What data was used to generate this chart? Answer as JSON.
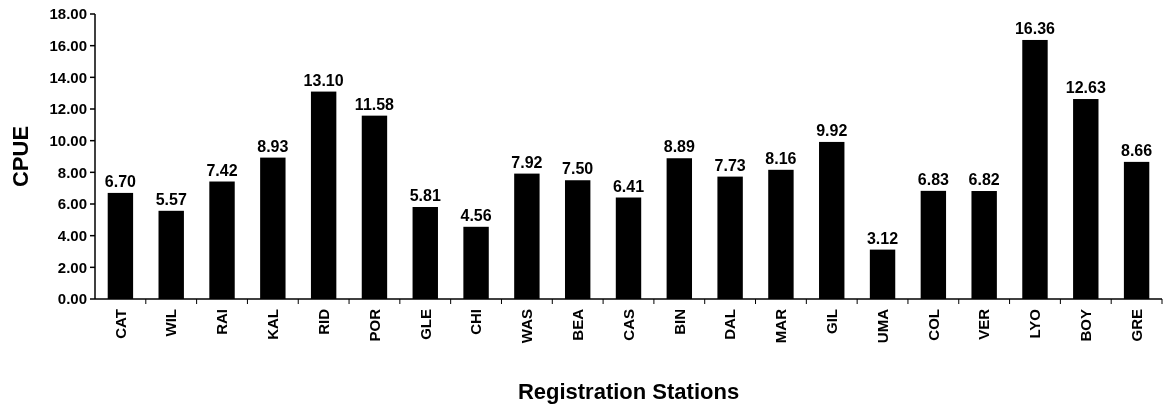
{
  "chart_data": {
    "type": "bar",
    "xlabel": "Registration Stations",
    "ylabel": "CPUE",
    "categories": [
      "CAT",
      "WIL",
      "RAI",
      "KAL",
      "RID",
      "POR",
      "GLE",
      "CHI",
      "WAS",
      "BEA",
      "CAS",
      "BIN",
      "DAL",
      "MAR",
      "GIL",
      "UMA",
      "COL",
      "VER",
      "LYO",
      "BOY",
      "GRE"
    ],
    "values": [
      6.7,
      5.57,
      7.42,
      8.93,
      13.1,
      11.58,
      5.81,
      4.56,
      7.92,
      7.5,
      6.41,
      8.89,
      7.73,
      8.16,
      9.92,
      3.12,
      6.83,
      6.82,
      16.36,
      12.63,
      8.66
    ],
    "value_labels": [
      "6.70",
      "5.57",
      "7.42",
      "8.93",
      "13.10",
      "11.58",
      "5.81",
      "4.56",
      "7.92",
      "7.50",
      "6.41",
      "8.89",
      "7.73",
      "8.16",
      "9.92",
      "3.12",
      "6.83",
      "6.82",
      "16.36",
      "12.63",
      "8.66"
    ],
    "color": "#000000",
    "ylim": [
      0,
      18
    ],
    "yticks": [
      {
        "value": 0,
        "label": "0.00"
      },
      {
        "value": 2,
        "label": "2.00"
      },
      {
        "value": 4,
        "label": "4.00"
      },
      {
        "value": 6,
        "label": "6.00"
      },
      {
        "value": 8,
        "label": "8.00"
      },
      {
        "value": 10,
        "label": "10.00"
      },
      {
        "value": 12,
        "label": "12.00"
      },
      {
        "value": 14,
        "label": "14.00"
      },
      {
        "value": 16,
        "label": "16.00"
      },
      {
        "value": 18,
        "label": "18.00"
      }
    ],
    "grid": false
  }
}
